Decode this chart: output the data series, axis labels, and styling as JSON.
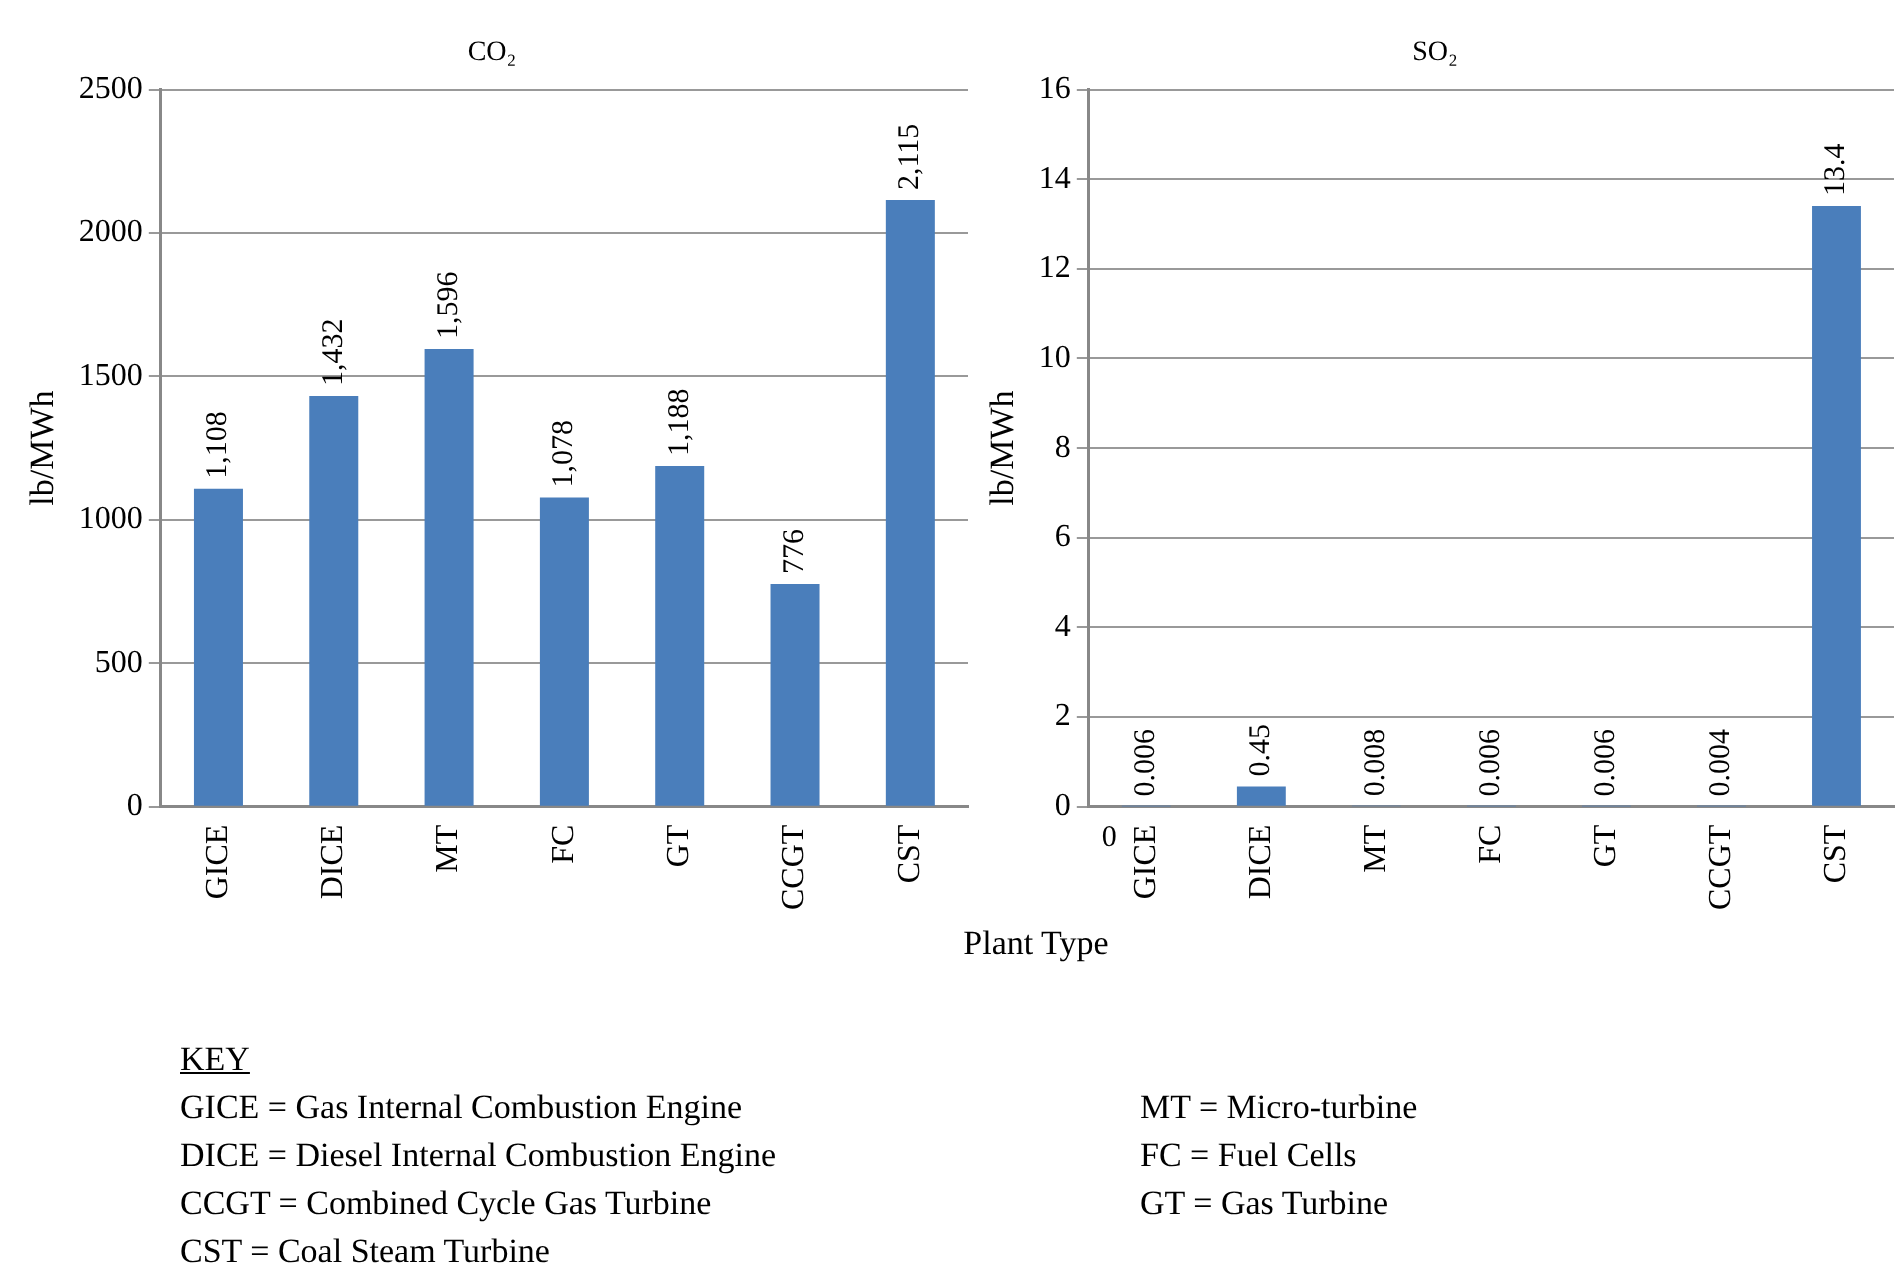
{
  "chart_data": [
    {
      "type": "bar",
      "title": "CO₂",
      "ylabel": "lb/MWh",
      "categories": [
        "GICE",
        "DICE",
        "MT",
        "FC",
        "GT",
        "CCGT",
        "CST"
      ],
      "values": [
        1108,
        1432,
        1596,
        1078,
        1188,
        776,
        2115
      ],
      "value_labels": [
        "1,108",
        "1,432",
        "1,596",
        "1,078",
        "1,188",
        "776",
        "2,115"
      ],
      "color": "#4a7ebb",
      "ylim": [
        0,
        2500
      ],
      "yticks": [
        0,
        500,
        1000,
        1500,
        2000,
        2500
      ],
      "grid": "y",
      "annotations": [
        "KEY",
        "GICE = Gas Internal Combustion Engine",
        "DICE = Diesel Internal Combustion Engine",
        "CCGT = Combined Cycle Gas Turbine",
        "CST = Coal Steam Turbine",
        "MT = Micro-turbine",
        "FC = Fuel Cells",
        "GT = Gas Turbine"
      ]
    },
    {
      "type": "bar",
      "title": "SO₂",
      "ylabel": "lb/MWh",
      "xlabel": "Plant Type",
      "categories": [
        "GICE",
        "DICE",
        "MT",
        "FC",
        "GT",
        "CCGT",
        "CST"
      ],
      "values": [
        0.006,
        0.45,
        0.008,
        0.006,
        0.006,
        0.004,
        13.4
      ],
      "data_labels": true,
      "color": "#4a7ebb",
      "ylim": [
        0,
        16
      ],
      "yticks": [
        0,
        2,
        4,
        6,
        8,
        10,
        12,
        14,
        16
      ],
      "grid": "y",
      "annotations": [
        "0"
      ]
    }
  ]
}
